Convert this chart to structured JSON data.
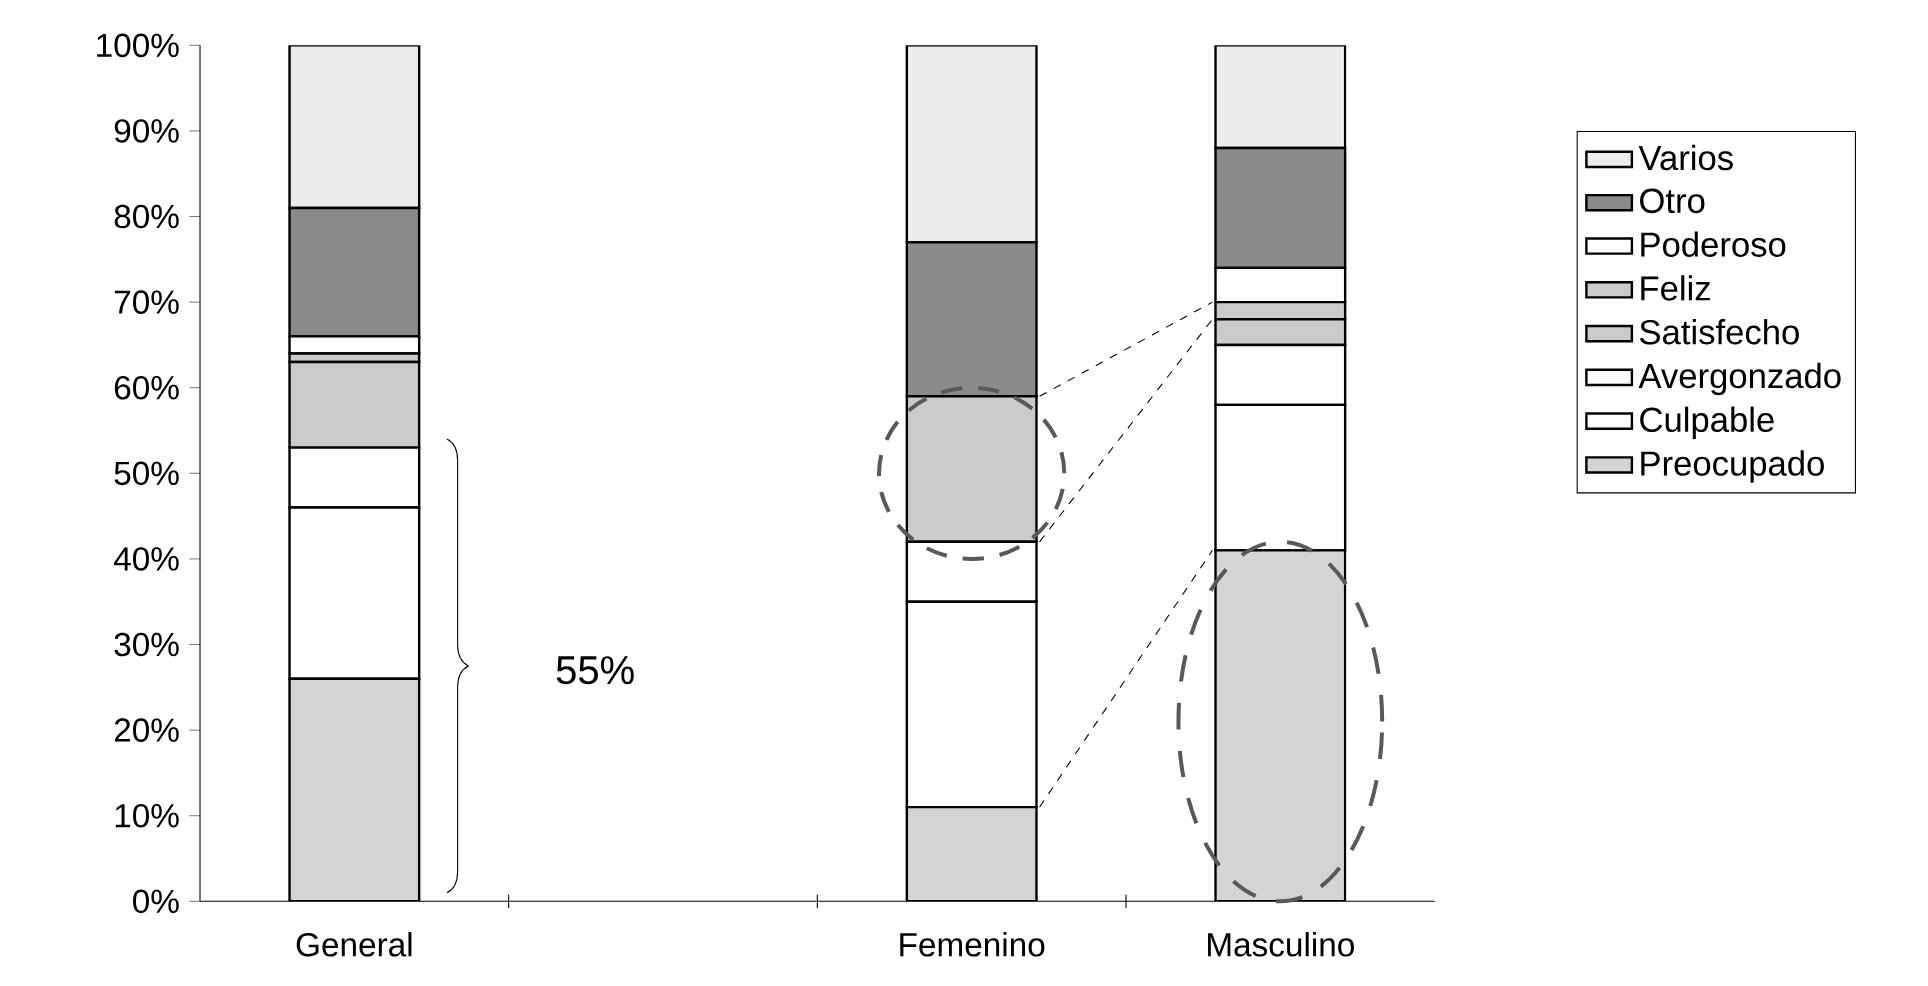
{
  "chart_data": {
    "type": "bar",
    "stacked": true,
    "categories": [
      "General",
      null,
      "Femenino",
      "Masculino"
    ],
    "series": [
      {
        "name": "Preocupado",
        "color": "#d4d4d4",
        "values": [
          26,
          null,
          11,
          41
        ]
      },
      {
        "name": "Culpable",
        "color": "#ffffff",
        "values": [
          20,
          null,
          24,
          17
        ]
      },
      {
        "name": "Avergonzado",
        "color": "#ffffff",
        "values": [
          7,
          null,
          7,
          7
        ]
      },
      {
        "name": "Satisfecho",
        "color": "#cacaca",
        "values": [
          10,
          null,
          17,
          3
        ]
      },
      {
        "name": "Feliz",
        "color": "#cacaca",
        "values": [
          1,
          null,
          0,
          2
        ]
      },
      {
        "name": "Poderoso",
        "color": "#ffffff",
        "values": [
          2,
          null,
          0,
          4
        ]
      },
      {
        "name": "Otro",
        "color": "#8a8a8a",
        "values": [
          15,
          null,
          18,
          14
        ]
      },
      {
        "name": "Varios",
        "color": "#ececec",
        "values": [
          19,
          null,
          23,
          12
        ]
      }
    ],
    "ylim": [
      0,
      100
    ],
    "yticks": [
      {
        "value": 0,
        "label": "0%"
      },
      {
        "value": 10,
        "label": "10%"
      },
      {
        "value": 20,
        "label": "20%"
      },
      {
        "value": 30,
        "label": "30%"
      },
      {
        "value": 40,
        "label": "40%"
      },
      {
        "value": 50,
        "label": "50%"
      },
      {
        "value": 60,
        "label": "60%"
      },
      {
        "value": 70,
        "label": "70%"
      },
      {
        "value": 80,
        "label": "80%"
      },
      {
        "value": 90,
        "label": "90%"
      },
      {
        "value": 100,
        "label": "100%"
      }
    ],
    "legend": "right",
    "annotations": [
      "55%"
    ]
  }
}
